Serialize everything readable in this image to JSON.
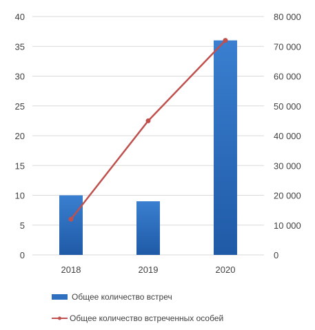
{
  "chart_data": {
    "type": "bar",
    "categories": [
      "2018",
      "2019",
      "2020"
    ],
    "series": [
      {
        "name": "Общее количество встреч",
        "type": "bar",
        "axis": "left",
        "values": [
          10,
          9,
          36
        ],
        "color": "#2e6fbf"
      },
      {
        "name": "Общее количество встреченных особей",
        "type": "line",
        "axis": "right",
        "values": [
          12000,
          45000,
          72000
        ],
        "color": "#c0504d"
      }
    ],
    "y_left": {
      "lim": [
        0,
        40
      ],
      "ticks": [
        "0",
        "5",
        "10",
        "15",
        "20",
        "25",
        "30",
        "35",
        "40"
      ]
    },
    "y_right": {
      "lim": [
        0,
        80000
      ],
      "ticks": [
        "0",
        "10 000",
        "20 000",
        "30 000",
        "40 000",
        "50 000",
        "60 000",
        "70 000",
        "80 000"
      ]
    },
    "grid": true,
    "legend_position": "bottom"
  }
}
